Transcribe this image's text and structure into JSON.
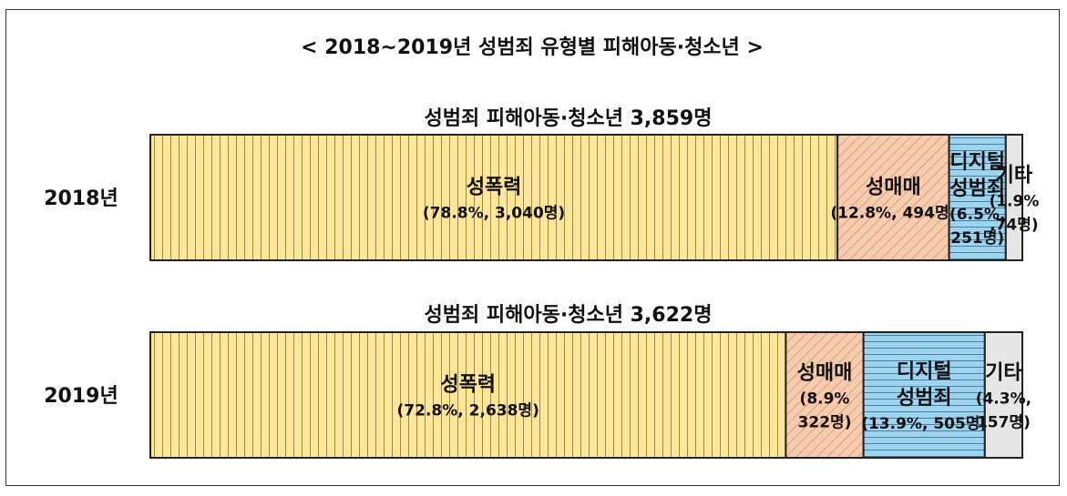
{
  "chart_data": {
    "type": "bar",
    "stacked": true,
    "orientation": "horizontal",
    "title": "< 2018~2019년 성범죄 유형별 피해아동·청소년 >",
    "bars": [
      {
        "year": "2018년",
        "subtitle": "성범죄 피해아동·청소년 3,859명",
        "total": 3859,
        "segments": [
          {
            "category": [
              "성폭력"
            ],
            "label": [
              "(78.8%, 3,040명)"
            ],
            "percent": 78.8,
            "count": 3040
          },
          {
            "category": [
              "성매매"
            ],
            "label": [
              "(12.8%, 494명)"
            ],
            "percent": 12.8,
            "count": 494
          },
          {
            "category": [
              "디지털",
              "성범죄"
            ],
            "label": [
              "(6.5%,",
              "251명)"
            ],
            "percent": 6.5,
            "count": 251
          },
          {
            "category": [
              "기타"
            ],
            "label": [
              "(1.9%",
              ",74명)"
            ],
            "percent": 1.9,
            "count": 74
          }
        ]
      },
      {
        "year": "2019년",
        "subtitle": "성범죄 피해아동·청소년 3,622명",
        "total": 3622,
        "segments": [
          {
            "category": [
              "성폭력"
            ],
            "label": [
              "(72.8%, 2,638명)"
            ],
            "percent": 72.8,
            "count": 2638
          },
          {
            "category": [
              "성매매"
            ],
            "label": [
              "(8.9%",
              "322명)"
            ],
            "percent": 8.9,
            "count": 322
          },
          {
            "category": [
              "디지털",
              "성범죄"
            ],
            "label": [
              "(13.9%, 505명)"
            ],
            "percent": 13.9,
            "count": 505
          },
          {
            "category": [
              "기타"
            ],
            "label": [
              "(4.3%,",
              "157명)"
            ],
            "percent": 4.3,
            "count": 157
          }
        ]
      }
    ],
    "colors": {
      "성폭력": "#FFE699",
      "성매매": "#F8CBAD",
      "디지털 성범죄": "#9DD5F0",
      "기타": "#E7E6E6"
    }
  }
}
